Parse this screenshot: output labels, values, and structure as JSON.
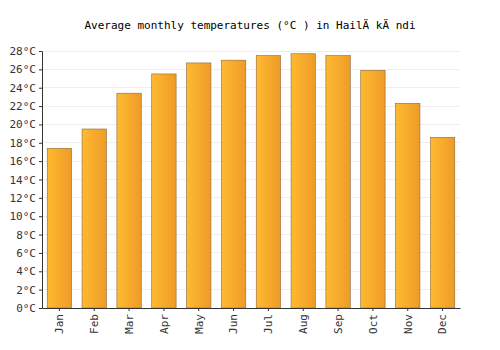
{
  "chart_data": {
    "type": "bar",
    "title": "Average monthly temperatures (°C ) in HailÄ kÄ ndi",
    "categories": [
      "Jan",
      "Feb",
      "Mar",
      "Apr",
      "May",
      "Jun",
      "Jul",
      "Aug",
      "Sep",
      "Oct",
      "Nov",
      "Dec"
    ],
    "values": [
      17.4,
      19.5,
      23.4,
      25.5,
      26.7,
      27.0,
      27.5,
      27.7,
      27.5,
      25.9,
      22.3,
      18.6
    ],
    "color": "#fba42a",
    "ylim": [
      0,
      28
    ],
    "yticks": [
      {
        "value": 0,
        "label": "0°C"
      },
      {
        "value": 2,
        "label": "2°C"
      },
      {
        "value": 4,
        "label": "4°C"
      },
      {
        "value": 6,
        "label": "6°C"
      },
      {
        "value": 8,
        "label": "8°C"
      },
      {
        "value": 10,
        "label": "10°C"
      },
      {
        "value": 12,
        "label": "12°C"
      },
      {
        "value": 14,
        "label": "14°C"
      },
      {
        "value": 16,
        "label": "16°C"
      },
      {
        "value": 18,
        "label": "18°C"
      },
      {
        "value": 20,
        "label": "20°C"
      },
      {
        "value": 22,
        "label": "22°C"
      },
      {
        "value": 24,
        "label": "24°C"
      },
      {
        "value": 26,
        "label": "26°C"
      },
      {
        "value": 28,
        "label": "28°C"
      }
    ],
    "grid": true
  }
}
